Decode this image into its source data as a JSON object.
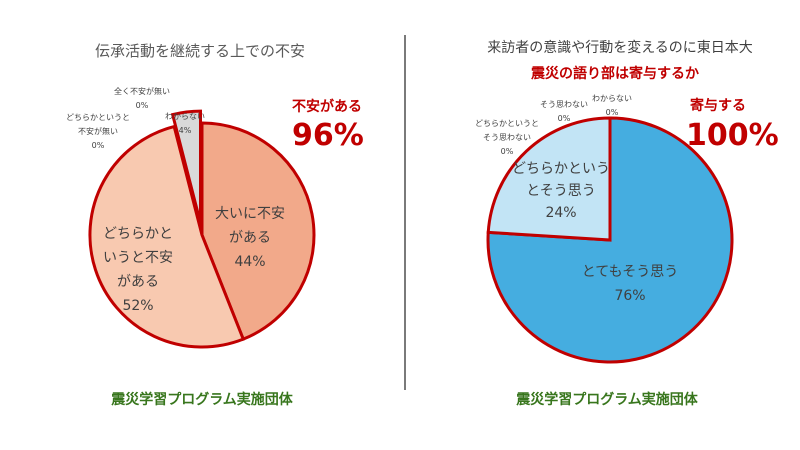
{
  "colors": {
    "accent_red": "#c00000",
    "title_gray": "#595959",
    "label_gray": "#404040",
    "footer_green": "#38761d",
    "divider": "#222222"
  },
  "left": {
    "title": "伝承活動を継続する上での不安",
    "callout_label": "不安がある",
    "callout_value": "96%",
    "footer": "震災学習プログラム実施団体"
  },
  "right": {
    "title_line1": "来訪者の意識や行動を変えるのに東日本大",
    "title_line2": "震災の語り部は寄与するか",
    "callout_label": "寄与する",
    "callout_value": "100%",
    "footer": "震災学習プログラム実施団体"
  },
  "chart_data": [
    {
      "type": "pie",
      "title": "伝承活動を継続する上での不安",
      "categories": [
        "大いに不安がある",
        "どちらかというと不安がある",
        "どちらかというと不安が無い",
        "全く不安が無い",
        "わからない"
      ],
      "values": [
        44,
        52,
        0,
        0,
        4
      ],
      "labels": [
        {
          "lines": [
            "大いに不安",
            "がある"
          ],
          "pct": "44%"
        },
        {
          "lines": [
            "どちらかと",
            "いうと不安",
            "がある"
          ],
          "pct": "52%"
        },
        {
          "lines": [
            "どちらかというと",
            "不安が無い"
          ],
          "pct": "0%"
        },
        {
          "lines": [
            "全く不安が無い"
          ],
          "pct": "0%"
        },
        {
          "lines": [
            "わからない"
          ],
          "pct": "4%"
        }
      ],
      "colors": [
        "#f2a98a",
        "#f8c9b0",
        "#f8c9b0",
        "#e0e0e0",
        "#d9d9d9"
      ]
    },
    {
      "type": "pie",
      "title": "来訪者の意識や行動を変えるのに東日本大震災の語り部は寄与するか",
      "categories": [
        "とてもそう思う",
        "どちらかというとそう思う",
        "どちらかというとそう思わない",
        "そう思わない",
        "わからない"
      ],
      "values": [
        76,
        24,
        0,
        0,
        0
      ],
      "labels": [
        {
          "lines": [
            "とてもそう思う"
          ],
          "pct": "76%"
        },
        {
          "lines": [
            "どちらかという",
            "とそう思う"
          ],
          "pct": "24%"
        },
        {
          "lines": [
            "どちらかというと",
            "そう思わない"
          ],
          "pct": "0%"
        },
        {
          "lines": [
            "そう思わない"
          ],
          "pct": "0%"
        },
        {
          "lines": [
            "わからない"
          ],
          "pct": "0%"
        }
      ],
      "colors": [
        "#45ade0",
        "#c2e4f5",
        "#c2e4f5",
        "#e0e0e0",
        "#d9d9d9"
      ]
    }
  ]
}
